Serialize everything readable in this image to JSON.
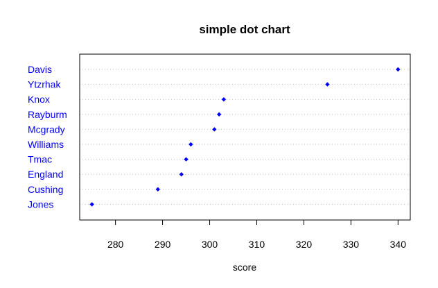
{
  "chart_data": {
    "type": "scatter",
    "subtype": "dot-chart",
    "title": "simple dot chart",
    "xlabel": "score",
    "ylabel": "",
    "categories": [
      "Davis",
      "Ytzrhak",
      "Knox",
      "Rayburm",
      "Mcgrady",
      "Williams",
      "Tmac",
      "England",
      "Cushing",
      "Jones"
    ],
    "values": [
      340,
      325,
      303,
      302,
      301,
      296,
      295,
      294,
      289,
      275
    ],
    "xlim": [
      275,
      340
    ],
    "xticks": [
      280,
      290,
      300,
      310,
      320,
      330,
      340
    ],
    "grid": "dotted horizontal lines per category",
    "marker": "diamond",
    "colors": {
      "points": "#0000ff",
      "labels": "#0000ff",
      "grid": "#bebebe",
      "axis": "#000000"
    }
  }
}
